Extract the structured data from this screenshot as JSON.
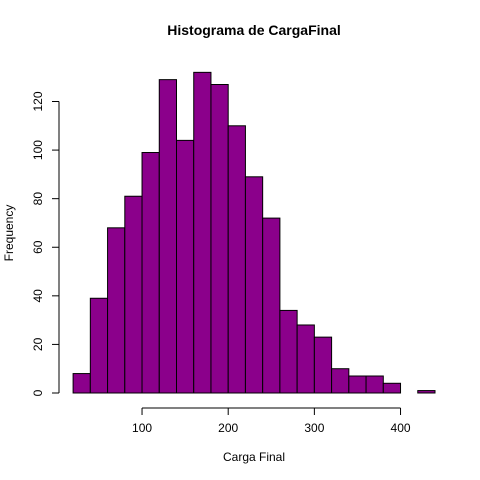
{
  "chart_data": {
    "type": "bar",
    "title": "Histograma de CargaFinal",
    "xlabel": "Carga Final",
    "ylabel": "Frequency",
    "bin_width": 20,
    "bins": [
      {
        "start": 20,
        "end": 40,
        "count": 8
      },
      {
        "start": 40,
        "end": 60,
        "count": 39
      },
      {
        "start": 60,
        "end": 80,
        "count": 68
      },
      {
        "start": 80,
        "end": 100,
        "count": 81
      },
      {
        "start": 100,
        "end": 120,
        "count": 99
      },
      {
        "start": 120,
        "end": 140,
        "count": 129
      },
      {
        "start": 140,
        "end": 160,
        "count": 104
      },
      {
        "start": 160,
        "end": 180,
        "count": 132
      },
      {
        "start": 180,
        "end": 200,
        "count": 127
      },
      {
        "start": 200,
        "end": 220,
        "count": 110
      },
      {
        "start": 220,
        "end": 240,
        "count": 89
      },
      {
        "start": 240,
        "end": 260,
        "count": 72
      },
      {
        "start": 260,
        "end": 280,
        "count": 34
      },
      {
        "start": 280,
        "end": 300,
        "count": 28
      },
      {
        "start": 300,
        "end": 320,
        "count": 23
      },
      {
        "start": 320,
        "end": 340,
        "count": 10
      },
      {
        "start": 340,
        "end": 360,
        "count": 7
      },
      {
        "start": 360,
        "end": 380,
        "count": 7
      },
      {
        "start": 380,
        "end": 400,
        "count": 4
      },
      {
        "start": 400,
        "end": 420,
        "count": 0
      },
      {
        "start": 420,
        "end": 440,
        "count": 1
      }
    ],
    "xlim": [
      20,
      440
    ],
    "ylim": [
      0,
      132
    ],
    "x_ticks": [
      100,
      200,
      300,
      400
    ],
    "y_ticks": [
      0,
      20,
      40,
      60,
      80,
      100,
      120
    ],
    "bar_color": "#8B008B",
    "bar_border_color": "#000000",
    "grid": false,
    "legend": "none"
  }
}
